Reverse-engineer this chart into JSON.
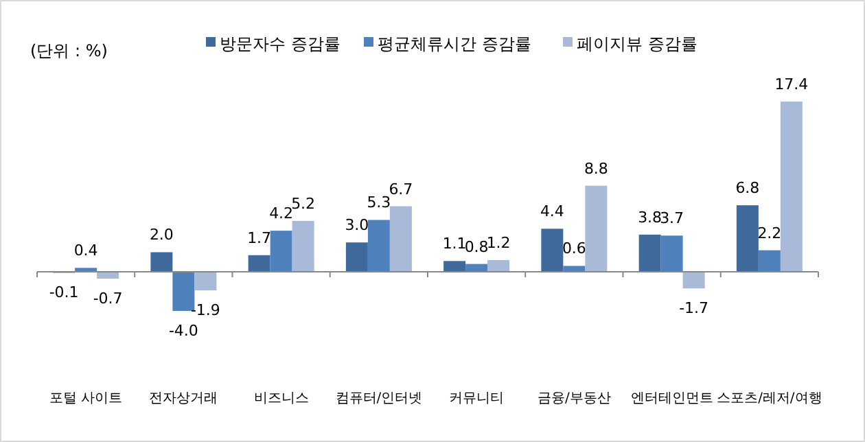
{
  "chart_data": {
    "type": "bar",
    "categories": [
      "포털 사이트",
      "전자상거래",
      "비즈니스",
      "컴퓨터/인터넷",
      "커뮤니티",
      "금융/부동산",
      "엔터테인먼트",
      "스포츠/레저/여행"
    ],
    "series": [
      {
        "name": "방문자수 증감률",
        "color": "#3f6a9b",
        "values": [
          -0.1,
          2.0,
          1.7,
          3.0,
          1.1,
          4.4,
          3.8,
          6.8
        ],
        "value_labels": [
          "-0.1",
          "2.0",
          "1.7",
          "3.0",
          "1.1",
          "4.4",
          "3.8",
          "6.8"
        ]
      },
      {
        "name": "평균체류시간 증감률",
        "color": "#4f81bd",
        "values": [
          0.4,
          -4.0,
          4.2,
          5.3,
          0.8,
          0.6,
          3.7,
          2.2
        ],
        "value_labels": [
          "0.4",
          "-4.0",
          "4.2",
          "5.3",
          "0.8",
          "0.6",
          "3.7",
          "2.2"
        ]
      },
      {
        "name": "페이지뷰 증감률",
        "color": "#a9b9d8",
        "values": [
          -0.7,
          -1.9,
          5.2,
          6.7,
          1.2,
          8.8,
          -1.7,
          17.4
        ],
        "value_labels": [
          "-0.7",
          "-1.9",
          "5.2",
          "6.7",
          "1.2",
          "8.8",
          "-1.7",
          "17.4"
        ]
      }
    ],
    "legend": "top",
    "annotations": [
      "(단위 : %)"
    ]
  }
}
